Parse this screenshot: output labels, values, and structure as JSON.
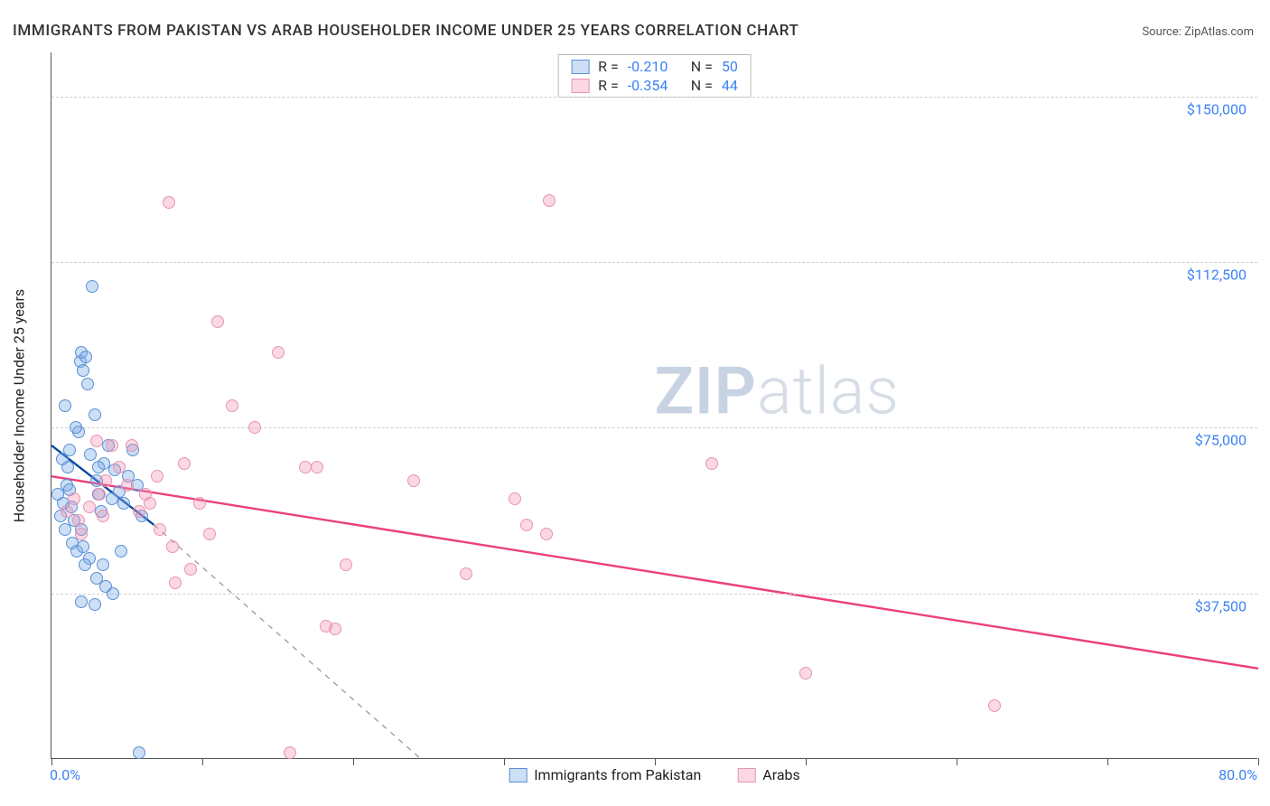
{
  "title": "IMMIGRANTS FROM PAKISTAN VS ARAB HOUSEHOLDER INCOME UNDER 25 YEARS CORRELATION CHART",
  "source_label": "Source:",
  "source_name": "ZipAtlas.com",
  "watermark_zip": "ZIP",
  "watermark_atlas": "atlas",
  "chart": {
    "type": "scatter",
    "xlim": [
      0,
      80
    ],
    "ylim": [
      0,
      160000
    ],
    "xtick_positions": [
      0,
      10,
      20,
      30,
      40,
      50,
      60,
      70,
      80
    ],
    "xtick_label_left": "0.0%",
    "xtick_label_right": "80.0%",
    "ytick_positions": [
      37500,
      75000,
      112500,
      150000
    ],
    "ytick_labels": [
      "$37,500",
      "$75,000",
      "$112,500",
      "$150,000"
    ],
    "ylabel": "Householder Income Under 25 years",
    "grid_color": "#cfcfcf",
    "background_color": "#ffffff",
    "marker_radius": 7,
    "series": [
      {
        "key": "pakistan",
        "label": "Immigrants from Pakistan",
        "fill": "rgba(120,170,230,0.38)",
        "stroke": "#5a8fd6",
        "trend_color": "#0b4aa2",
        "trend_dash_color": "#9a9a9a",
        "r_value": "-0.210",
        "n_value": "50",
        "trend": {
          "x1": 0,
          "y1": 71000,
          "x2": 6.8,
          "y2": 53000
        },
        "trend_dash": {
          "x1": 6.8,
          "y1": 53000,
          "x2": 24.5,
          "y2": 0
        },
        "points": [
          [
            0.4,
            60000
          ],
          [
            0.6,
            55000
          ],
          [
            0.8,
            58000
          ],
          [
            0.9,
            52000
          ],
          [
            1.0,
            62000
          ],
          [
            1.1,
            66000
          ],
          [
            1.2,
            70000
          ],
          [
            1.3,
            57000
          ],
          [
            1.4,
            49000
          ],
          [
            1.5,
            54000
          ],
          [
            1.7,
            47000
          ],
          [
            1.8,
            74000
          ],
          [
            1.9,
            90000
          ],
          [
            2.0,
            92000
          ],
          [
            2.1,
            88000
          ],
          [
            2.3,
            91000
          ],
          [
            2.4,
            85000
          ],
          [
            2.7,
            107000
          ],
          [
            2.9,
            78000
          ],
          [
            3.0,
            63000
          ],
          [
            3.1,
            60000
          ],
          [
            3.3,
            56000
          ],
          [
            3.5,
            67000
          ],
          [
            3.8,
            71000
          ],
          [
            4.0,
            59000
          ],
          [
            4.2,
            65500
          ],
          [
            4.5,
            60500
          ],
          [
            4.8,
            58000
          ],
          [
            5.1,
            64000
          ],
          [
            5.4,
            70000
          ],
          [
            5.7,
            62000
          ],
          [
            6.0,
            55000
          ],
          [
            0.9,
            80000
          ],
          [
            1.6,
            75000
          ],
          [
            2.0,
            52000
          ],
          [
            2.1,
            48000
          ],
          [
            2.5,
            45500
          ],
          [
            3.0,
            41000
          ],
          [
            3.4,
            44000
          ],
          [
            3.6,
            39000
          ],
          [
            4.1,
            37500
          ],
          [
            0.7,
            68000
          ],
          [
            1.2,
            61000
          ],
          [
            2.6,
            69000
          ],
          [
            3.1,
            66000
          ],
          [
            2.0,
            35500
          ],
          [
            4.6,
            47000
          ],
          [
            5.8,
            1500
          ],
          [
            2.9,
            35000
          ],
          [
            2.2,
            44000
          ]
        ]
      },
      {
        "key": "arabs",
        "label": "Arabs",
        "fill": "rgba(244,143,177,0.35)",
        "stroke": "#e794b2",
        "trend_color": "#ec407a",
        "r_value": "-0.354",
        "n_value": "44",
        "trend": {
          "x1": 0,
          "y1": 64000,
          "x2": 80,
          "y2": 20500
        },
        "points": [
          [
            1.0,
            56000
          ],
          [
            1.5,
            59000
          ],
          [
            1.8,
            54000
          ],
          [
            2.0,
            51000
          ],
          [
            2.5,
            57000
          ],
          [
            3.0,
            72000
          ],
          [
            3.2,
            60000
          ],
          [
            3.6,
            63000
          ],
          [
            4.0,
            71000
          ],
          [
            4.5,
            66000
          ],
          [
            5.0,
            62000
          ],
          [
            5.3,
            71000
          ],
          [
            5.8,
            56000
          ],
          [
            6.2,
            60000
          ],
          [
            6.5,
            58000
          ],
          [
            7.0,
            64000
          ],
          [
            7.2,
            52000
          ],
          [
            7.8,
            126000
          ],
          [
            8.8,
            67000
          ],
          [
            8.0,
            48000
          ],
          [
            9.2,
            43000
          ],
          [
            9.8,
            58000
          ],
          [
            10.5,
            51000
          ],
          [
            11.0,
            99000
          ],
          [
            12.0,
            80000
          ],
          [
            13.5,
            75000
          ],
          [
            15.0,
            92000
          ],
          [
            16.8,
            66000
          ],
          [
            17.6,
            66000
          ],
          [
            18.2,
            30000
          ],
          [
            18.8,
            29500
          ],
          [
            19.5,
            44000
          ],
          [
            24.0,
            63000
          ],
          [
            27.5,
            42000
          ],
          [
            30.7,
            59000
          ],
          [
            31.5,
            53000
          ],
          [
            32.8,
            51000
          ],
          [
            33.0,
            126500
          ],
          [
            43.8,
            67000
          ],
          [
            50.0,
            19500
          ],
          [
            62.5,
            12000
          ],
          [
            15.8,
            1500
          ],
          [
            8.2,
            40000
          ],
          [
            3.4,
            55000
          ]
        ]
      }
    ]
  },
  "stats_labels": {
    "r": "R",
    "n": "N",
    "eq": "="
  }
}
